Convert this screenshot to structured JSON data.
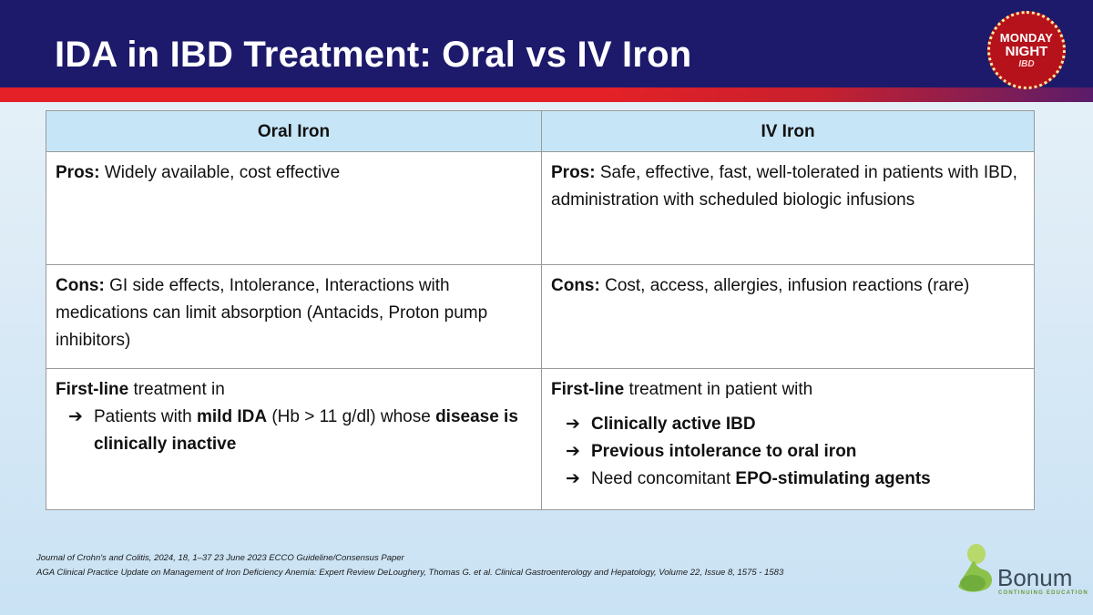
{
  "slide": {
    "title": "IDA in IBD Treatment: Oral vs IV Iron"
  },
  "logo_event": {
    "line1": "MONDAY",
    "line2": "NIGHT",
    "line3": "IBD"
  },
  "table": {
    "headers": [
      "Oral Iron",
      "IV Iron"
    ],
    "pros": {
      "label": "Pros:",
      "oral": "Widely available, cost effective",
      "iv": "Safe, effective, fast, well-tolerated in patients with IBD, administration with scheduled biologic infusions"
    },
    "cons": {
      "label": "Cons:",
      "oral": "GI side effects, Intolerance, Interactions with medications can limit absorption (Antacids, Proton pump inhibitors)",
      "iv": "Cost, access, allergies, infusion reactions (rare)"
    },
    "first_line": {
      "oral": {
        "bold_lead": "First-line",
        "lead_rest": " treatment in",
        "bullet_arrow": "➔",
        "bullet_text_1": "Patients with ",
        "bullet_bold_1": "mild IDA",
        "bullet_text_2": " (Hb > 11 g/dl) whose ",
        "bullet_bold_2": "disease is clinically inactive"
      },
      "iv": {
        "bold_lead": "First-line",
        "lead_rest": " treatment in patient with",
        "bullet_arrow": "➔",
        "bullet1": "Clinically active IBD",
        "bullet2": "Previous intolerance to oral iron",
        "bullet3_text": "Need concomitant ",
        "bullet3_bold": "EPO-stimulating agents"
      }
    }
  },
  "references": [
    "Journal of Crohn's and Colitis, 2024, 18, 1–37 23 June 2023 ECCO Guideline/Consensus Paper",
    "AGA Clinical Practice Update on Management of Iron Deficiency Anemia: Expert Review DeLoughery, Thomas G. et al. Clinical Gastroenterology and Hepatology, Volume 22, Issue 8, 1575 - 1583"
  ],
  "logo_sponsor": {
    "name": "Bonum",
    "tagline": "CONTINUING EDUCATION"
  },
  "colors": {
    "header_bg": "#1d1a6b",
    "stripe": "#e42127",
    "table_header_bg": "#c6e6f8"
  }
}
